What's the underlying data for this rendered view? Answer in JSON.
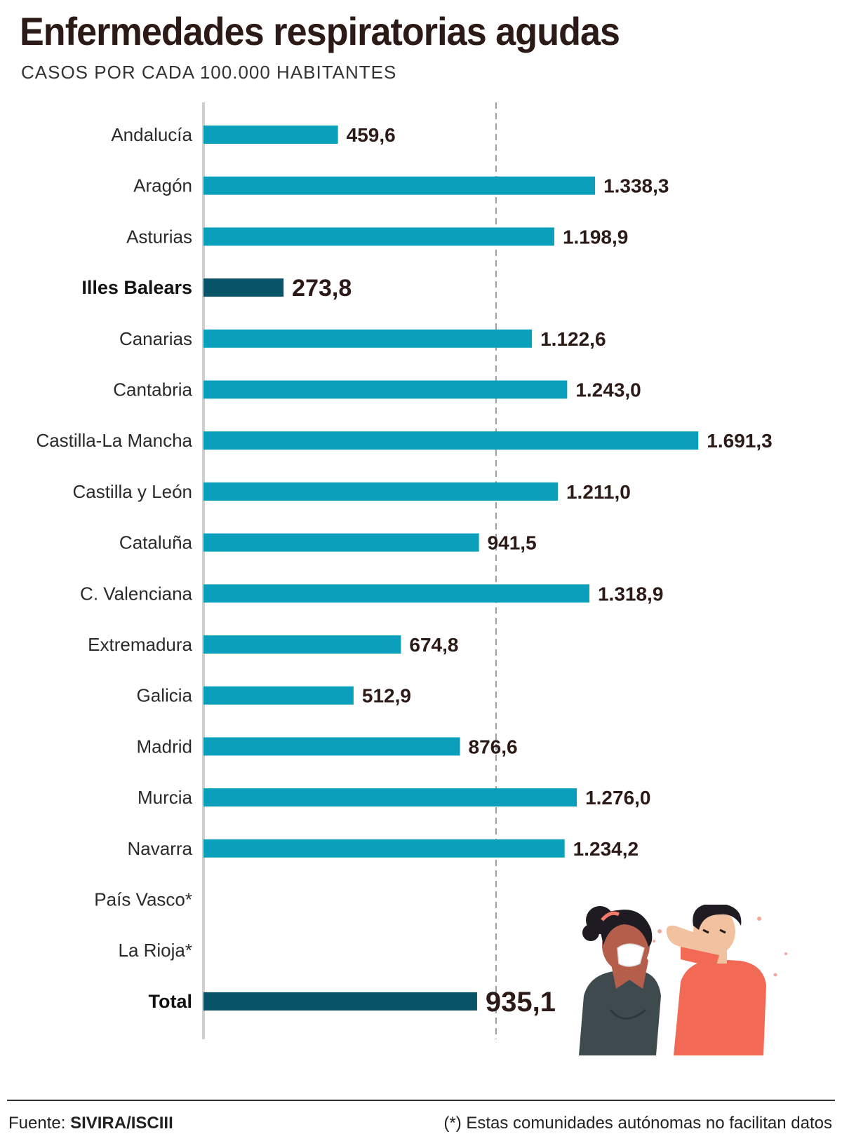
{
  "title": "Enfermedades respiratorias agudas",
  "subtitle": "CASOS POR CADA 100.000 HABITANTES",
  "chart_data": {
    "type": "bar",
    "orientation": "horizontal",
    "title": "Enfermedades respiratorias agudas",
    "subtitle": "CASOS POR CADA 100.000 HABITANTES",
    "xlim": [
      0,
      1750
    ],
    "reference_line": 1000,
    "categories": [
      "Andalucía",
      "Aragón",
      "Asturias",
      "Illes Balears",
      "Canarias",
      "Cantabria",
      "Castilla-La Mancha",
      "Castilla y León",
      "Cataluña",
      "C. Valenciana",
      "Extremadura",
      "Galicia",
      "Madrid",
      "Murcia",
      "Navarra",
      "País Vasco*",
      "La Rioja*",
      "Total"
    ],
    "values": [
      459.6,
      1338.3,
      1198.9,
      273.8,
      1122.6,
      1243.0,
      1691.3,
      1211.0,
      941.5,
      1318.9,
      674.8,
      512.9,
      876.6,
      1276.0,
      1234.2,
      null,
      null,
      935.1
    ],
    "value_labels": [
      "459,6",
      "1.338,3",
      "1.198,9",
      "273,8",
      "1.122,6",
      "1.243,0",
      "1.691,3",
      "1.211,0",
      "941,5",
      "1.318,9",
      "674,8",
      "512,9",
      "876,6",
      "1.276,0",
      "1.234,2",
      "",
      "",
      "935,1"
    ],
    "highlighted": [
      "Illes Balears",
      "Total"
    ],
    "colors": {
      "bar": "#0aa0bb",
      "highlight": "#0a5467",
      "axis": "#cfcfcf",
      "reference": "#888888",
      "text": "#2b1a16"
    }
  },
  "footer": {
    "source_label": "Fuente: ",
    "source_value": "SIVIRA/ISCIII",
    "note": "(*) Estas comunidades autónomas no facilitan datos"
  },
  "illustration": {
    "icon": "sneezing-people-illustration",
    "colors": {
      "woman_shirt": "#3f4a4f",
      "woman_skin": "#b65e4c",
      "man_shirt": "#f26a55",
      "man_skin": "#f2c2a0",
      "hair": "#1e1c22"
    }
  }
}
